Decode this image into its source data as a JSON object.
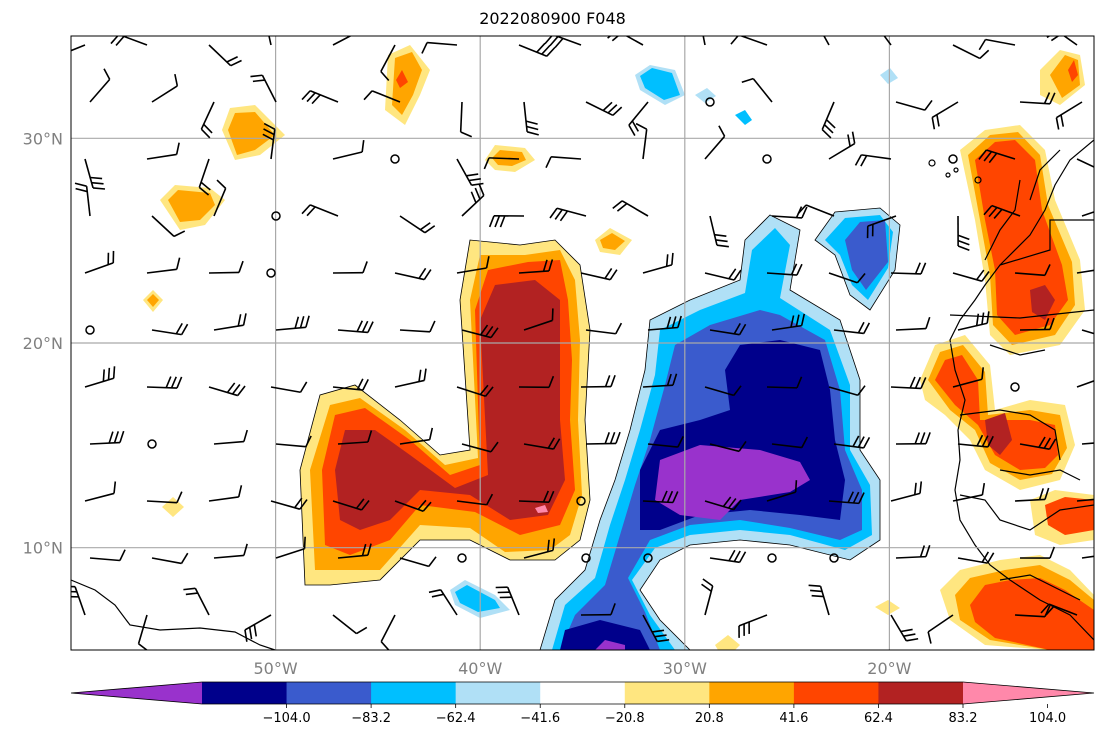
{
  "title": "2022080900 F048",
  "map": {
    "lon_range": [
      -60,
      -10
    ],
    "lat_range": [
      5,
      35
    ],
    "lon_labels": [
      {
        "lon": -50,
        "text": "50°W"
      },
      {
        "lon": -40,
        "text": "40°W"
      },
      {
        "lon": -30,
        "text": "30°W"
      },
      {
        "lon": -20,
        "text": "20°W"
      }
    ],
    "lat_labels": [
      {
        "lat": 30,
        "text": "30°N"
      },
      {
        "lat": 20,
        "text": "20°N"
      },
      {
        "lat": 10,
        "text": "10°N"
      }
    ],
    "grid": true,
    "grid_color": "#a9a9a9"
  },
  "colorbar": {
    "orientation": "horizontal",
    "extend": "both",
    "colors": [
      "#9932cc",
      "#00008b",
      "#3a5bcd",
      "#00bfff",
      "#b0e0f6",
      "#ffffff",
      "#ffe680",
      "#ffa500",
      "#ff4500",
      "#b22222",
      "#ff88aa"
    ],
    "tick_labels": [
      "−104.0",
      "−83.2",
      "−62.4",
      "−41.6",
      "−20.8",
      "20.8",
      "41.6",
      "62.4",
      "83.2",
      "104.0"
    ]
  },
  "colors": {
    "orange": "#ffa500",
    "red_orange": "#ff4500",
    "dark_red": "#b22222",
    "dark_blue": "#00008b",
    "royal_blue": "#3a5bcd",
    "deep_sky": "#00bfff",
    "light_blue": "#b0e0f6",
    "light_yellow": "#ffe680",
    "violet": "#9932cc",
    "pink": "#ff88aa"
  }
}
